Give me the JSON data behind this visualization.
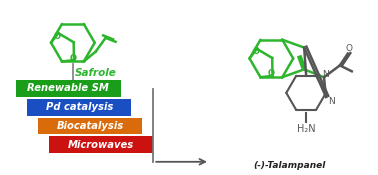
{
  "background_color": "#ffffff",
  "safrole_label": "Safrole",
  "safrole_label_color": "#2db52d",
  "talampanel_label": "(-)-Talampanel",
  "nh2_label": "H₂N",
  "banners": [
    {
      "text": "Renewable SM",
      "color": "#1a9e1a",
      "xf": 0.04,
      "yf": 0.54,
      "wf": 0.28,
      "hf": 0.095
    },
    {
      "text": "Pd catalysis",
      "color": "#1a4fc4",
      "xf": 0.07,
      "yf": 0.43,
      "wf": 0.28,
      "hf": 0.095
    },
    {
      "text": "Biocatalysis",
      "color": "#d96b0a",
      "xf": 0.1,
      "yf": 0.32,
      "wf": 0.28,
      "hf": 0.095
    },
    {
      "text": "Microwaves",
      "color": "#cc1111",
      "xf": 0.13,
      "yf": 0.21,
      "wf": 0.28,
      "hf": 0.095
    }
  ],
  "banner_text_color": "#ffffff",
  "green_color": "#2db52d",
  "dark_color": "#555555",
  "fig_width": 3.78,
  "fig_height": 1.75,
  "dpi": 100
}
